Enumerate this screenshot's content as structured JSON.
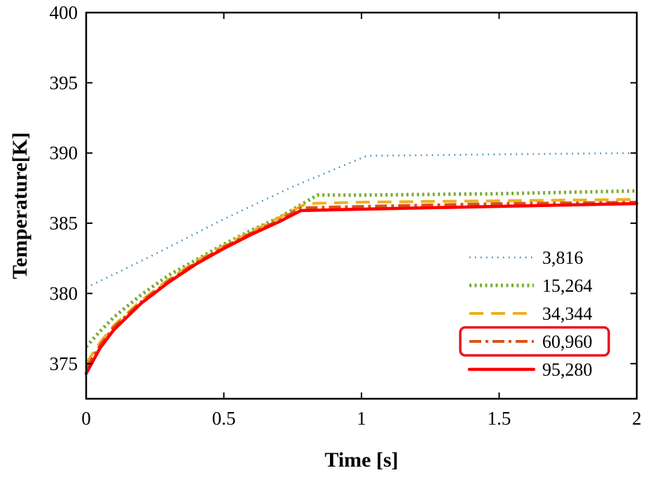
{
  "chart_data": {
    "type": "line",
    "title": "",
    "xlabel": "Time [s]",
    "ylabel": "Temperature[K]",
    "xlim": [
      0,
      2
    ],
    "ylim": [
      372.5,
      400
    ],
    "x_ticks": [
      0,
      0.5,
      1,
      1.5,
      2
    ],
    "x_tick_labels": [
      "0",
      "0.5",
      "1",
      "1.5",
      "2"
    ],
    "y_ticks": [
      375,
      380,
      385,
      390,
      395,
      400
    ],
    "y_tick_labels": [
      "375",
      "380",
      "385",
      "390",
      "395",
      "400"
    ],
    "grid": false,
    "legend_position": "bottom-right",
    "highlighted_series": "60,960",
    "series": [
      {
        "name": "3,816",
        "color": "#2E86C1",
        "style": "dotted",
        "x": [
          0,
          0.25,
          0.5,
          0.75,
          1.02,
          1.5,
          2
        ],
        "y": [
          380.4,
          382.8,
          385.3,
          387.6,
          389.8,
          389.9,
          390.0
        ]
      },
      {
        "name": "15,264",
        "color": "#77AC30",
        "style": "dotted-heavy",
        "x": [
          0,
          0.05,
          0.1,
          0.2,
          0.3,
          0.4,
          0.5,
          0.6,
          0.7,
          0.84,
          1.0,
          1.5,
          2
        ],
        "y": [
          376.2,
          377.3,
          378.3,
          379.9,
          381.3,
          382.4,
          383.5,
          384.5,
          385.4,
          387.0,
          387.0,
          387.1,
          387.3
        ]
      },
      {
        "name": "34,344",
        "color": "#EDB120",
        "style": "dashed",
        "x": [
          0,
          0.05,
          0.1,
          0.2,
          0.3,
          0.4,
          0.5,
          0.6,
          0.7,
          0.8,
          1.0,
          1.5,
          2
        ],
        "y": [
          375.0,
          376.5,
          377.7,
          379.5,
          381.0,
          382.3,
          383.4,
          384.4,
          385.4,
          386.4,
          386.5,
          386.6,
          386.7
        ]
      },
      {
        "name": "60,960",
        "color": "#D95319",
        "style": "dashdot",
        "x": [
          0,
          0.05,
          0.1,
          0.2,
          0.3,
          0.4,
          0.5,
          0.6,
          0.7,
          0.78,
          1.0,
          1.5,
          2
        ],
        "y": [
          374.7,
          376.3,
          377.6,
          379.4,
          380.9,
          382.2,
          383.3,
          384.3,
          385.2,
          386.1,
          386.2,
          386.4,
          386.5
        ]
      },
      {
        "name": "95,280",
        "color": "#FF0000",
        "style": "solid",
        "x": [
          0,
          0.05,
          0.1,
          0.2,
          0.3,
          0.4,
          0.5,
          0.6,
          0.7,
          0.78,
          1.0,
          1.5,
          2
        ],
        "y": [
          374.3,
          376.1,
          377.4,
          379.3,
          380.8,
          382.1,
          383.2,
          384.2,
          385.1,
          385.9,
          386.0,
          386.2,
          386.4
        ]
      }
    ]
  }
}
